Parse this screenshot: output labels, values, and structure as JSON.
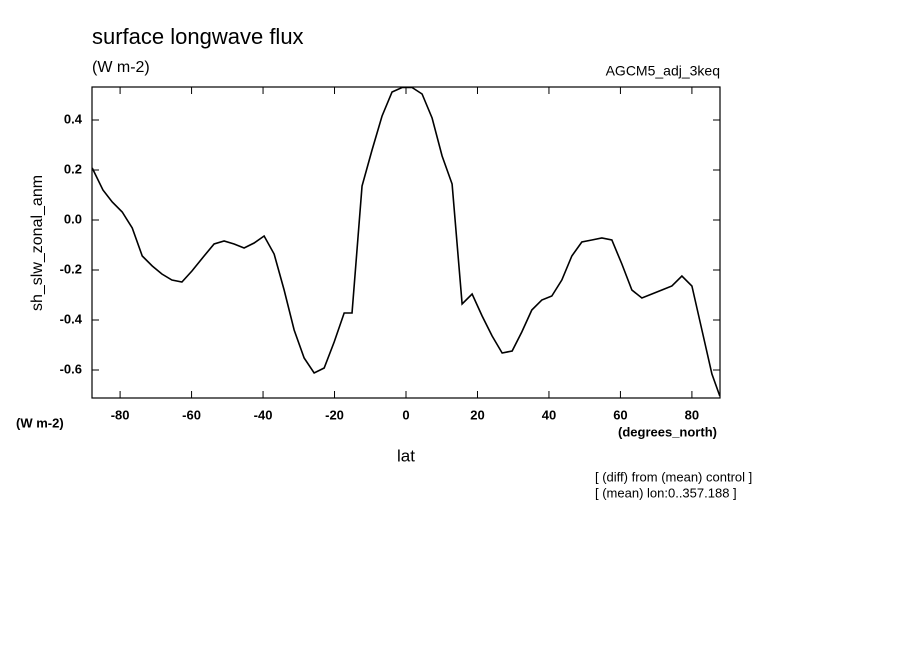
{
  "chart_data": {
    "type": "line",
    "title": "surface longwave flux",
    "units": "(W m-2)",
    "dataset": "AGCM5_adj_3keq",
    "ylabel": "sh_slw_zonal_anm",
    "y_units": "(W m-2)",
    "x_units": "(degrees_north)",
    "xlabel": "lat",
    "notes": [
      "[ (diff) from (mean) control ]",
      "[ (mean) lon:0..357.188 ]"
    ],
    "color": "#000000",
    "x": [
      -87.8,
      -84.8,
      -82.2,
      -79.4,
      -76.6,
      -73.8,
      -71.0,
      -68.3,
      -65.5,
      -62.7,
      -59.9,
      -56.5,
      -53.7,
      -50.9,
      -48.1,
      -45.3,
      -42.5,
      -39.7,
      -36.9,
      -34.1,
      -31.3,
      -28.5,
      -25.7,
      -22.9,
      -20.1,
      -17.3,
      -15.1,
      -12.3,
      -9.5,
      -6.7,
      -3.9,
      -1.1,
      1.7,
      4.5,
      7.3,
      10.1,
      12.9,
      15.7,
      18.5,
      21.3,
      24.1,
      26.9,
      29.7,
      32.4,
      35.2,
      38.0,
      40.8,
      43.6,
      46.4,
      49.2,
      52.0,
      54.8,
      57.6,
      60.4,
      63.2,
      66.0,
      68.8,
      71.6,
      74.4,
      77.2,
      80.0,
      82.8,
      85.6,
      87.8
    ],
    "values": [
      0.208,
      0.12,
      0.072,
      0.032,
      -0.032,
      -0.144,
      -0.184,
      -0.216,
      -0.24,
      -0.248,
      -0.204,
      -0.144,
      -0.096,
      -0.084,
      -0.096,
      -0.112,
      -0.092,
      -0.064,
      -0.136,
      -0.28,
      -0.44,
      -0.552,
      -0.612,
      -0.592,
      -0.488,
      -0.372,
      -0.372,
      0.136,
      0.28,
      0.416,
      0.512,
      0.53,
      0.53,
      0.504,
      0.408,
      0.256,
      0.144,
      -0.336,
      -0.296,
      -0.384,
      -0.464,
      -0.532,
      -0.524,
      -0.448,
      -0.36,
      -0.32,
      -0.304,
      -0.24,
      -0.144,
      -0.088,
      -0.08,
      -0.072,
      -0.08,
      -0.176,
      -0.28,
      -0.312,
      -0.296,
      -0.28,
      -0.264,
      -0.224,
      -0.264,
      -0.44,
      -0.616,
      -0.704
    ],
    "xlim": [
      -87.86,
      87.86
    ],
    "xticks": [
      -80,
      -60,
      -40,
      -20,
      0,
      20,
      40,
      60,
      80
    ],
    "ylim": [
      -0.712,
      0.532
    ],
    "yticks": [
      -0.6,
      -0.4,
      -0.2,
      {
        "value": 0,
        "label": "0.0"
      },
      0.2,
      0.4
    ]
  }
}
